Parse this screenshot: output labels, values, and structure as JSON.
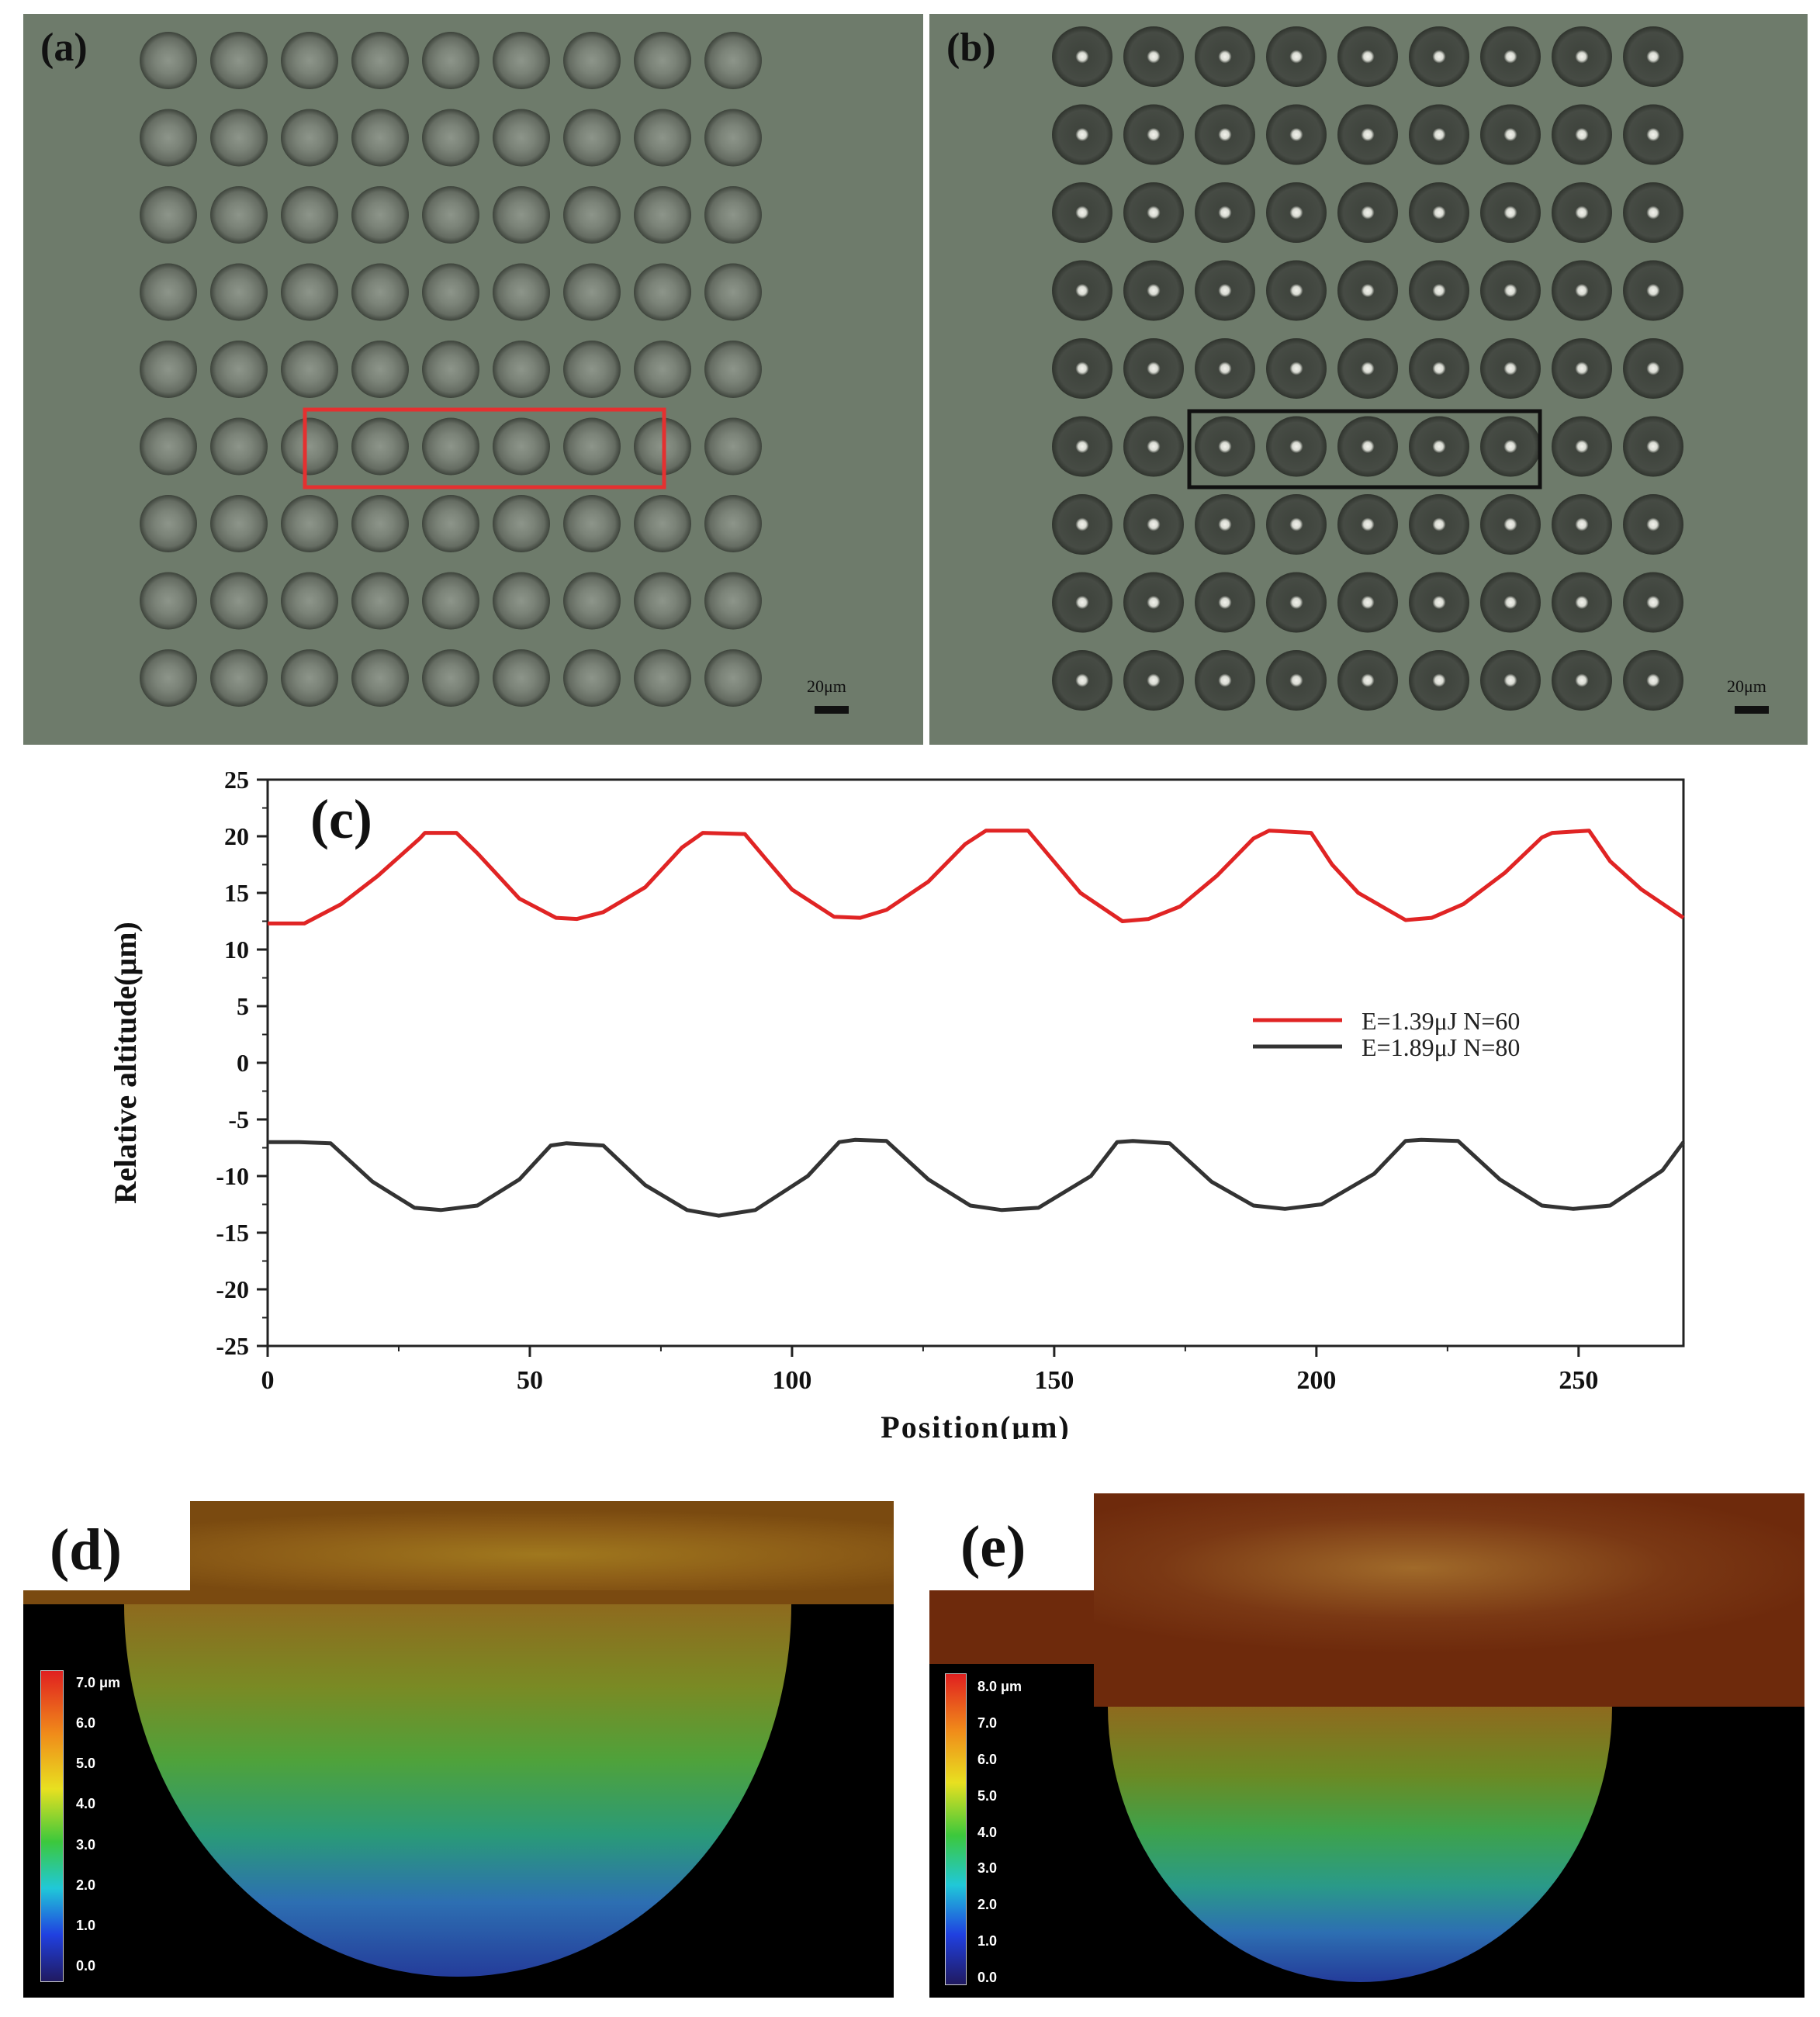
{
  "panel_a": {
    "label": "(a)",
    "scale_bar": "20μm",
    "highlight_color": "#e53030",
    "grid": "9 x 9 microlens array"
  },
  "panel_b": {
    "label": "(b)",
    "scale_bar": "20μm",
    "highlight_color": "#111111",
    "grid": "9 x 9 microlens array"
  },
  "panel_d": {
    "label": "(d)",
    "colorbar": [
      "7.0 μm",
      "6.0",
      "5.0",
      "4.0",
      "3.0",
      "2.0",
      "1.0",
      "0.0"
    ]
  },
  "panel_e": {
    "label": "(e)",
    "colorbar": [
      "8.0 μm",
      "7.0",
      "6.0",
      "5.0",
      "4.0",
      "3.0",
      "2.0",
      "1.0",
      "0.0"
    ]
  },
  "chart_data": {
    "type": "line",
    "panel_label": "(c)",
    "xlabel": "Position(μm)",
    "ylabel": "Relative altitude(μm)",
    "xlim": [
      0,
      270
    ],
    "ylim": [
      -25,
      25
    ],
    "xticks": [
      0,
      50,
      100,
      150,
      200,
      250
    ],
    "yticks": [
      25,
      20,
      15,
      10,
      5,
      0,
      -5,
      -10,
      -15,
      -20,
      -25
    ],
    "legend_position": "right",
    "series": [
      {
        "name": "E=1.39μJ N=60",
        "color": "#e02424",
        "x": [
          0,
          7,
          14,
          21,
          29,
          30,
          36,
          40,
          48,
          55,
          59,
          64,
          72,
          79,
          83,
          91,
          95,
          100,
          108,
          113,
          118,
          126,
          133,
          137,
          145,
          149,
          155,
          163,
          168,
          174,
          181,
          188,
          191,
          199,
          203,
          208,
          217,
          222,
          228,
          236,
          243,
          245,
          252,
          256,
          262,
          270
        ],
        "values": [
          12.3,
          12.3,
          14.0,
          16.5,
          19.8,
          20.3,
          20.3,
          18.5,
          14.5,
          12.8,
          12.7,
          13.3,
          15.5,
          19.0,
          20.3,
          20.2,
          18.0,
          15.3,
          12.9,
          12.8,
          13.5,
          16.0,
          19.3,
          20.5,
          20.5,
          18.3,
          15.0,
          12.5,
          12.7,
          13.8,
          16.5,
          19.8,
          20.5,
          20.3,
          17.5,
          15.0,
          12.6,
          12.8,
          14.0,
          16.8,
          19.9,
          20.3,
          20.5,
          17.8,
          15.3,
          12.8
        ]
      },
      {
        "name": "E=1.89μJ N=80",
        "color": "#333333",
        "x": [
          0,
          6,
          12,
          20,
          28,
          33,
          40,
          48,
          54,
          57,
          64,
          72,
          80,
          86,
          93,
          103,
          109,
          112,
          118,
          126,
          134,
          140,
          147,
          157,
          162,
          165,
          172,
          180,
          188,
          194,
          201,
          211,
          217,
          220,
          227,
          235,
          243,
          249,
          256,
          266,
          270
        ],
        "values": [
          -7.0,
          -7.0,
          -7.1,
          -10.5,
          -12.8,
          -13.0,
          -12.6,
          -10.3,
          -7.3,
          -7.1,
          -7.3,
          -10.8,
          -13.0,
          -13.5,
          -13.0,
          -10.0,
          -7.0,
          -6.8,
          -6.9,
          -10.3,
          -12.6,
          -13.0,
          -12.8,
          -10.0,
          -7.0,
          -6.9,
          -7.1,
          -10.5,
          -12.6,
          -12.9,
          -12.5,
          -9.8,
          -6.9,
          -6.8,
          -6.9,
          -10.3,
          -12.6,
          -12.9,
          -12.6,
          -9.5,
          -7.0
        ]
      }
    ]
  }
}
